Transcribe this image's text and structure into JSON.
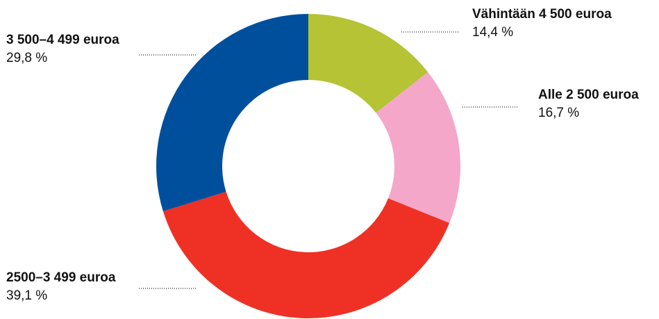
{
  "chart_data": {
    "type": "donut",
    "categories": [
      "Vähintään 4 500 euroa",
      "Alle 2 500 euroa",
      "2500–3 499 euroa",
      "3 500–4 499 euroa"
    ],
    "values": [
      14.4,
      16.7,
      39.1,
      29.8
    ],
    "value_labels": [
      "14,4 %",
      "16,7 %",
      "39,1 %",
      "29,8 %"
    ],
    "colors": [
      "#b5c334",
      "#f4a7c9",
      "#ee3124",
      "#004f9d"
    ]
  }
}
